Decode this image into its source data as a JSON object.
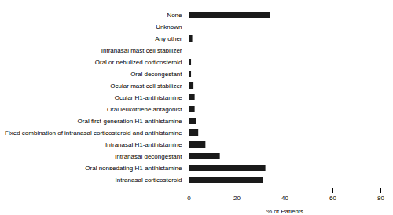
{
  "chart_data": {
    "type": "bar",
    "orientation": "horizontal",
    "categories": [
      "Intranasal corticosteroid",
      "Oral nonsedating H1-antihistamine",
      "Intranasal decongestant",
      "Intranasal H1-antihistamine",
      "Fixed combination of intranasal corticosteroid and antihistamine",
      "Oral first-generation H1-antihistamine",
      "Oral leukotriene antagonist",
      "Ocular H1-antihistamine",
      "Ocular mast cell stabilizer",
      "Oral decongestant",
      "Oral or nebulized corticosteroid",
      "Intranasal mast cell stabilizer",
      "Any other",
      "Unknown",
      "None"
    ],
    "values": [
      31.0,
      32.0,
      13.0,
      7.0,
      4.0,
      3.0,
      2.5,
      2.5,
      2.0,
      1.0,
      1.0,
      0.0,
      1.5,
      0.0,
      34.0
    ],
    "color": "#1a1a1a",
    "xlabel": "% of Patients",
    "xlim": [
      0,
      80
    ],
    "xticks": [
      0,
      20,
      40,
      60,
      80
    ]
  }
}
